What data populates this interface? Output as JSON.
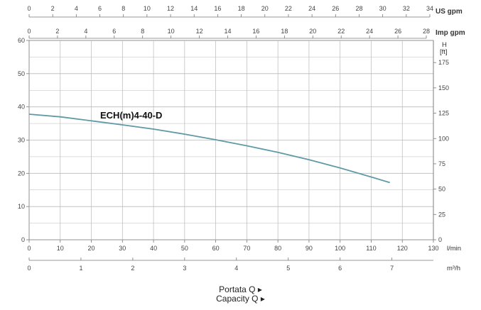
{
  "chart_data": {
    "type": "line",
    "title": "",
    "series": [
      {
        "name": "ECH(m)4-40-D",
        "x": [
          0,
          10,
          20,
          30,
          40,
          50,
          60,
          70,
          80,
          90,
          100,
          110,
          116
        ],
        "y": [
          37.8,
          37,
          35.8,
          34.6,
          33.3,
          31.8,
          30.1,
          28.3,
          26.3,
          24.1,
          21.6,
          18.9,
          17.2
        ]
      }
    ],
    "xlim": [
      0,
      130
    ],
    "ylim": [
      0,
      60
    ],
    "grid": true,
    "colors": {
      "curve": "#5f9aa6",
      "grid": "#b9b9b9",
      "axis": "#777777"
    },
    "axes": {
      "left_y": {
        "unit": "",
        "ticks": [
          "0",
          "10",
          "20",
          "30",
          "40",
          "50",
          "60"
        ]
      },
      "right_y": {
        "unit_line1": "H",
        "unit_line2": "[ft]",
        "ticks": [
          "0",
          "25",
          "50",
          "75",
          "100",
          "125",
          "150",
          "175"
        ]
      },
      "bottom_x": {
        "unit": "l/min",
        "ticks": [
          "0",
          "10",
          "20",
          "30",
          "40",
          "50",
          "60",
          "70",
          "80",
          "90",
          "100",
          "110",
          "120",
          "130"
        ]
      },
      "bottom_x2": {
        "unit": "m³/h",
        "ticks": [
          "0",
          "1",
          "2",
          "3",
          "4",
          "5",
          "6",
          "7"
        ]
      },
      "top_x1": {
        "unit": "US gpm",
        "ticks": [
          "0",
          "2",
          "4",
          "6",
          "8",
          "10",
          "12",
          "14",
          "16",
          "18",
          "20",
          "22",
          "24",
          "26",
          "28",
          "30",
          "32",
          "34"
        ]
      },
      "top_x2": {
        "unit": "Imp gpm",
        "ticks": [
          "0",
          "2",
          "4",
          "6",
          "8",
          "10",
          "12",
          "14",
          "16",
          "18",
          "20",
          "22",
          "24",
          "26",
          "28"
        ]
      }
    },
    "captions": [
      "Portata Q ▸",
      "Capacity Q ▸"
    ]
  }
}
